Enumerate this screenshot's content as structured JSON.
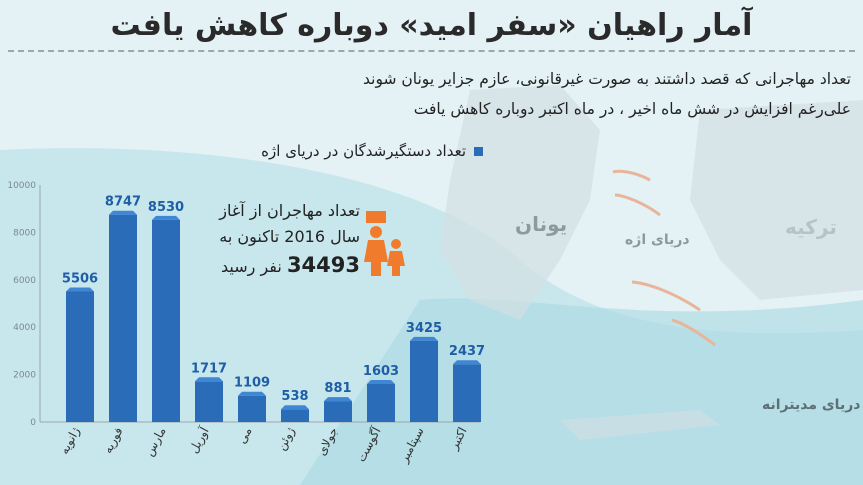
{
  "title": "آمار راهیان «سفر امید» دوباره کاهش یافت",
  "subtitle": {
    "line1": "تعداد مهاجرانی که قصد داشتند به صورت غیرقانونی، عازم جزایر یونان شوند",
    "line2": "علی‌رغم افزایش در شش ماه اخیر ، در ماه اکتبر دوباره کاهش یافت"
  },
  "summary": {
    "line1": "تعداد مهاجران از آغاز",
    "line2": "سال 2016 تاکنون به",
    "number": "34493",
    "suffix": "نفر رسید"
  },
  "map_labels": {
    "greece": "یونان",
    "turkey": "ترکیه",
    "aegean": "دریای اژه",
    "mediterranean": "دریای مدیترانه"
  },
  "colors": {
    "bar": "#2b6cb8",
    "bar_top": "#3f86d4",
    "accent": "#f07b2d"
  },
  "chart_data": {
    "type": "bar",
    "legend": "تعداد دستگیرشدگان در دریای اژه",
    "legend_position": "top",
    "categories": [
      "ژانویه",
      "فوریه",
      "مارس",
      "آوریل",
      "می",
      "ژوئن",
      "جولای",
      "آگوست",
      "سپتامبر",
      "اکتبر"
    ],
    "values": [
      5506,
      8747,
      8530,
      1717,
      1109,
      538,
      881,
      1603,
      3425,
      2437
    ],
    "yticks": [
      "0",
      "2000",
      "4000",
      "6000",
      "8000",
      "10000"
    ],
    "ylim": [
      0,
      10000
    ],
    "grid": false
  }
}
